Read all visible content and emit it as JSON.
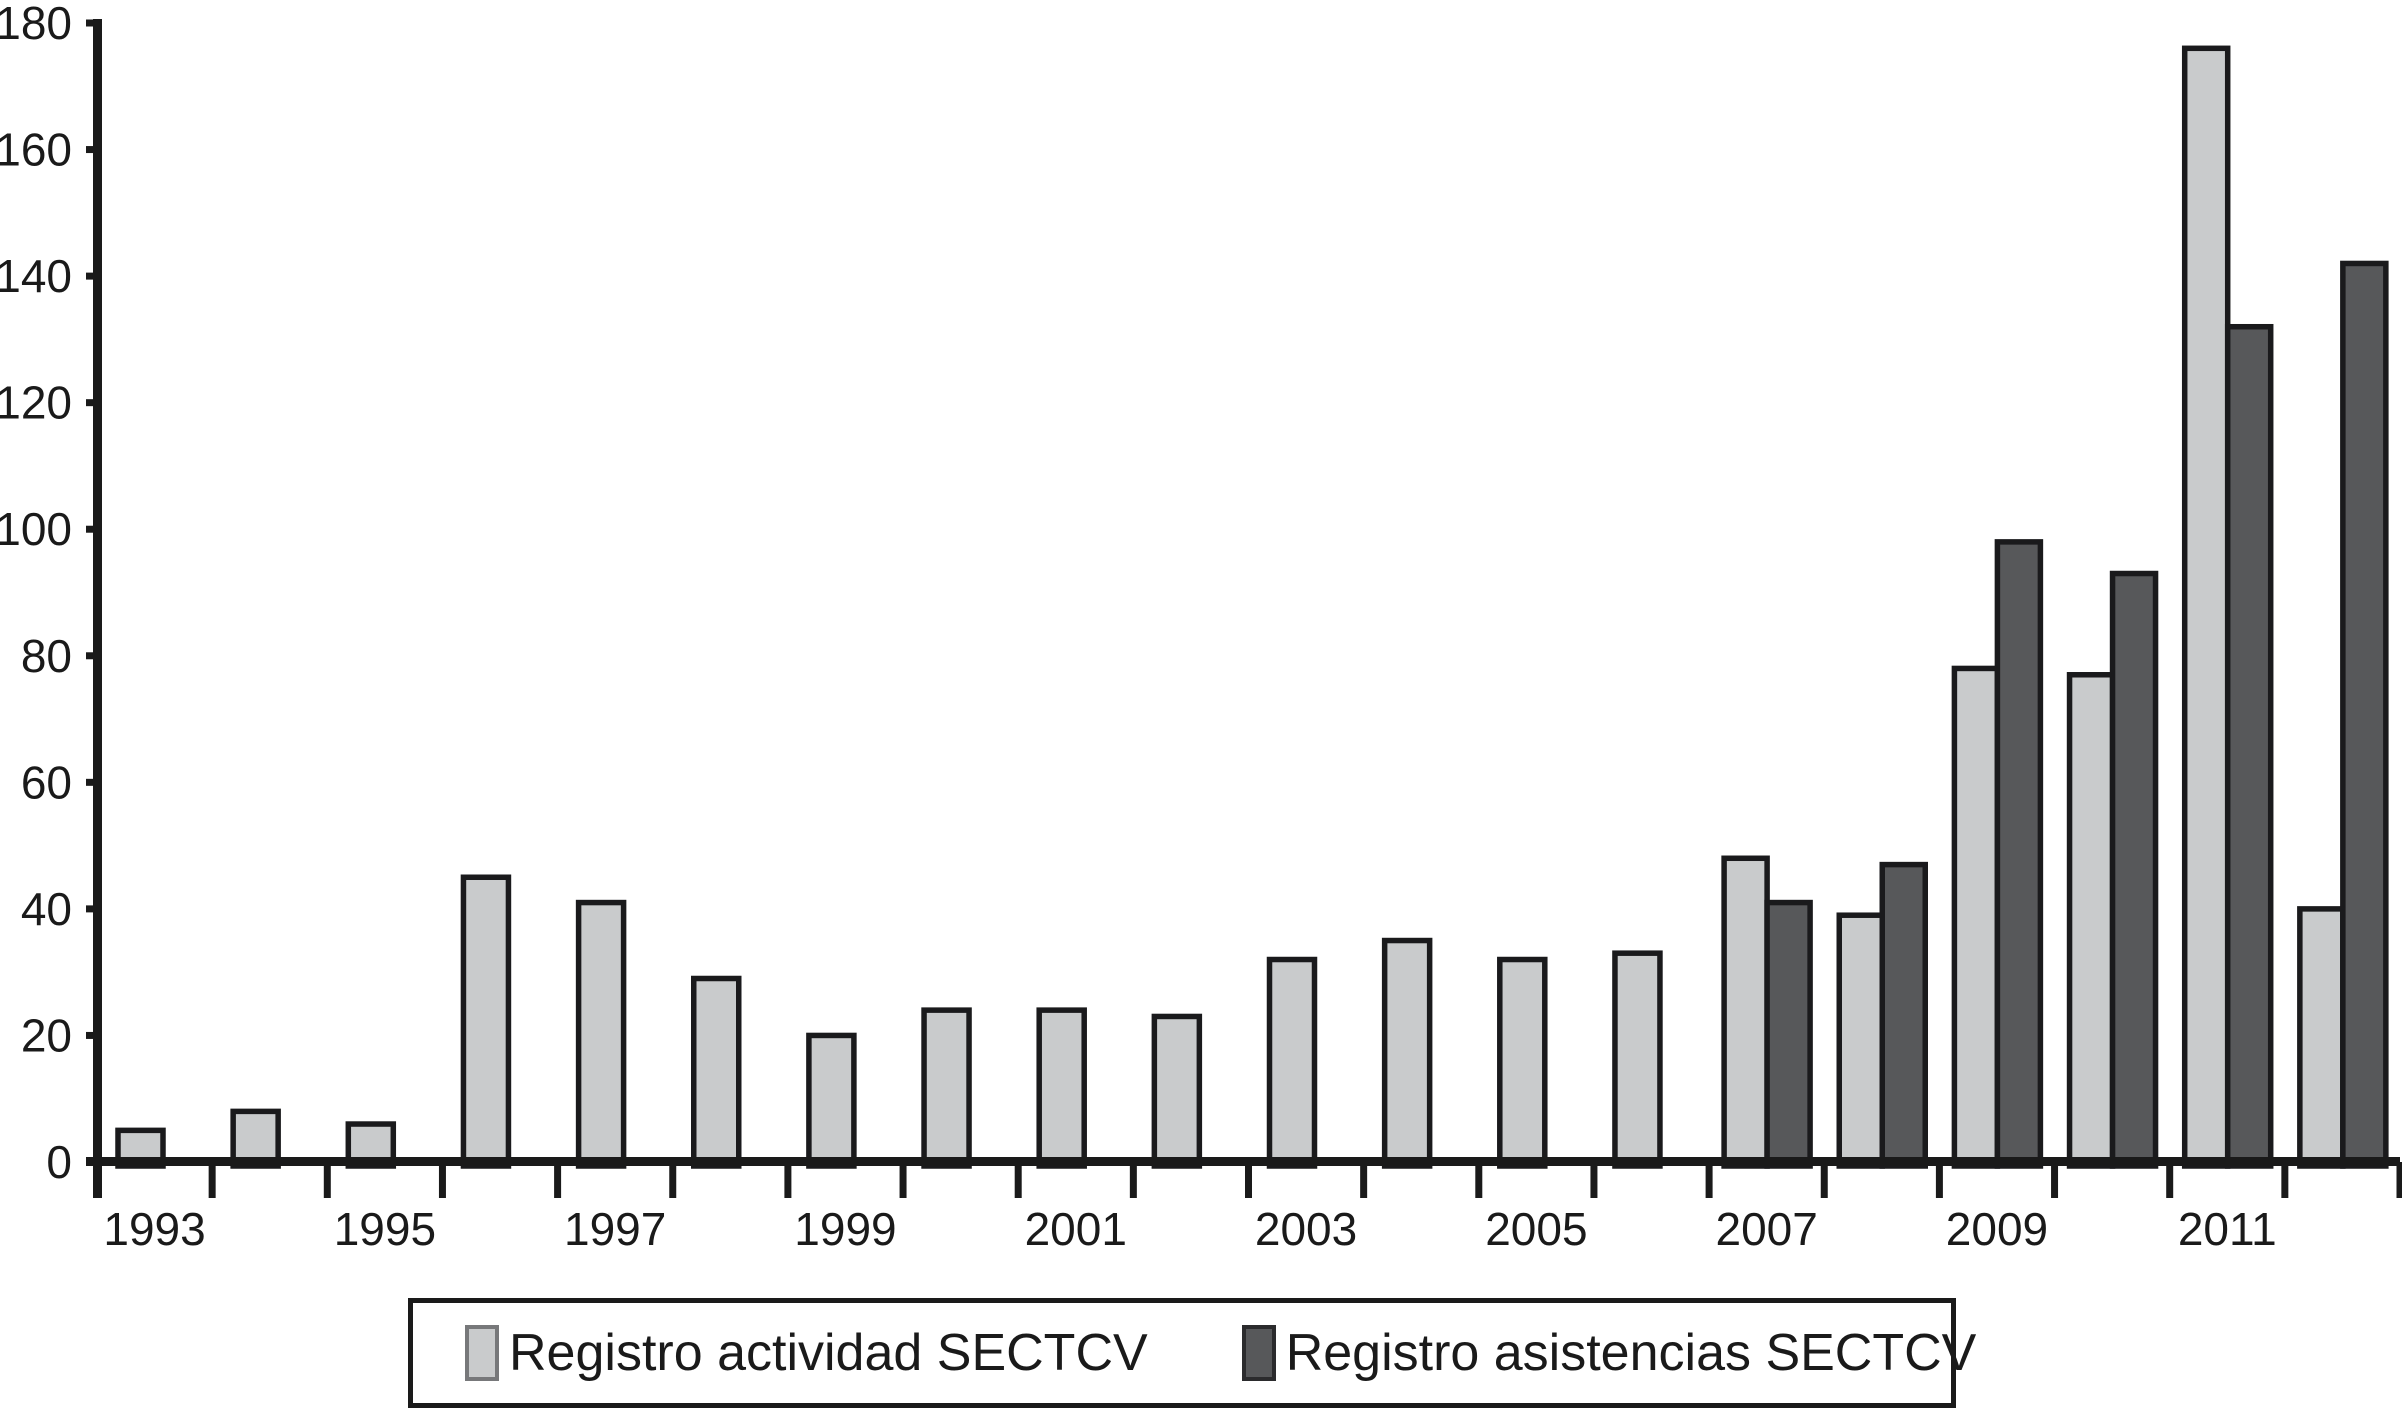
{
  "chart_data": {
    "type": "bar",
    "title": "",
    "xlabel": "",
    "ylabel": "",
    "categories": [
      1993,
      1994,
      1995,
      1996,
      1997,
      1998,
      1999,
      2000,
      2001,
      2002,
      2003,
      2004,
      2005,
      2006,
      2007,
      2008,
      2009,
      2010,
      2011,
      2012
    ],
    "series": [
      {
        "name": "Registro actividad SECTCV",
        "color": "#c9cbcc",
        "values": [
          5,
          8,
          6,
          45,
          41,
          29,
          20,
          24,
          24,
          23,
          32,
          35,
          32,
          33,
          48,
          39,
          78,
          77,
          176,
          40
        ]
      },
      {
        "name": "Registro asistencias SECTCV",
        "color": "#57585a",
        "values": [
          null,
          null,
          null,
          null,
          null,
          null,
          null,
          null,
          null,
          null,
          null,
          null,
          null,
          null,
          41,
          47,
          98,
          93,
          132,
          142
        ]
      }
    ],
    "ylim": [
      0,
      180
    ],
    "ytick_step": 20,
    "y_tick_labels": [
      "0",
      "20",
      "40",
      "60",
      "80",
      "100",
      "120",
      "140",
      "160",
      "180"
    ],
    "x_tick_labels": [
      "1993",
      "1995",
      "1997",
      "1999",
      "2001",
      "2003",
      "2005",
      "2007",
      "2009",
      "2011"
    ],
    "grid": false,
    "legend_position": "bottom"
  },
  "legend": {
    "items": [
      {
        "swatch": "light-gray-swatch",
        "label": "Registro actividad SECTCV"
      },
      {
        "swatch": "dark-gray-swatch",
        "label": "Registro asistencias SECTCV"
      }
    ]
  },
  "colors": {
    "series_light": "#c9cbcc",
    "series_dark": "#57585a",
    "bar_stroke": "#1a1a1c",
    "axis": "#1a1a1a",
    "background": "#ffffff"
  }
}
